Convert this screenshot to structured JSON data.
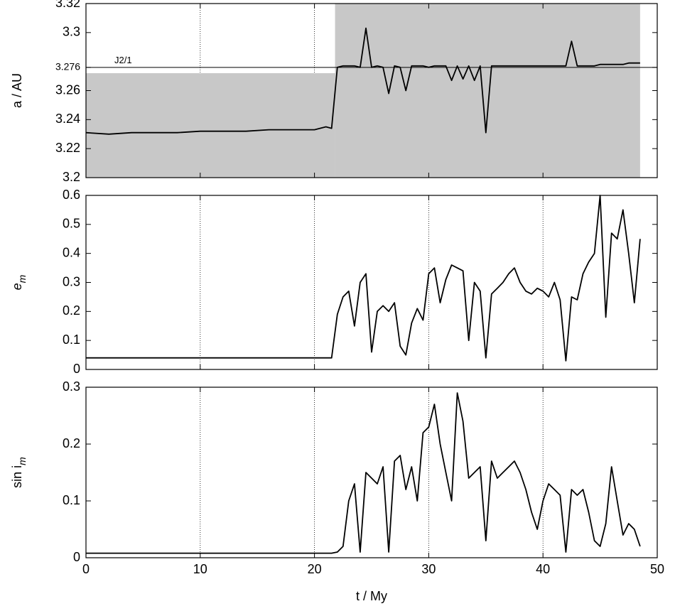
{
  "chart_data": [
    {
      "type": "line",
      "ylabel": "a / AU",
      "x": [
        0,
        2,
        4,
        6,
        8,
        10,
        12,
        14,
        16,
        18,
        20,
        21,
        21.5,
        22,
        22.5,
        23,
        23.5,
        24,
        24.5,
        25,
        25.5,
        26,
        26.5,
        27,
        27.5,
        28,
        28.5,
        29,
        29.5,
        30,
        30.5,
        31,
        31.5,
        32,
        32.5,
        33,
        33.5,
        34,
        34.5,
        35,
        35.5,
        36,
        36.5,
        37,
        37.5,
        38,
        38.5,
        39,
        39.5,
        40,
        40.5,
        41,
        41.5,
        42,
        42.5,
        43,
        43.5,
        44,
        44.5,
        45,
        45.5,
        46,
        46.5,
        47,
        47.5,
        48,
        48.5
      ],
      "values": [
        3.231,
        3.23,
        3.231,
        3.231,
        3.231,
        3.232,
        3.232,
        3.232,
        3.233,
        3.233,
        3.233,
        3.235,
        3.234,
        3.276,
        3.277,
        3.277,
        3.277,
        3.276,
        3.303,
        3.276,
        3.277,
        3.276,
        3.258,
        3.277,
        3.276,
        3.26,
        3.277,
        3.277,
        3.277,
        3.276,
        3.277,
        3.277,
        3.277,
        3.267,
        3.277,
        3.268,
        3.277,
        3.267,
        3.277,
        3.231,
        3.277,
        3.277,
        3.277,
        3.277,
        3.277,
        3.277,
        3.277,
        3.277,
        3.277,
        3.277,
        3.277,
        3.277,
        3.277,
        3.277,
        3.294,
        3.277,
        3.277,
        3.277,
        3.277,
        3.278,
        3.278,
        3.278,
        3.278,
        3.278,
        3.279,
        3.279,
        3.279
      ],
      "color": "#000000",
      "band": [
        {
          "x": [
            0,
            21.8
          ],
          "low": 3.2,
          "high": 3.272
        },
        {
          "x": [
            21.8,
            48.5
          ],
          "low": 3.2,
          "high": 3.32
        }
      ],
      "band_color": "#c8c8c8",
      "hline": 3.276,
      "hline_label": "J2/1",
      "xlim": [
        0,
        50
      ],
      "xticks": [
        0,
        10,
        20,
        30,
        40,
        50
      ],
      "xtick_labels": false,
      "xgrid": true,
      "ylim": [
        3.2,
        3.32
      ],
      "yticks": [
        3.2,
        3.22,
        3.24,
        3.26,
        3.276,
        3.3,
        3.32
      ]
    },
    {
      "type": "line",
      "ylabel": "e",
      "ylabel_sub": "m",
      "x": [
        0,
        2,
        4,
        6,
        8,
        10,
        12,
        14,
        16,
        18,
        20,
        21,
        21.5,
        22,
        22.5,
        23,
        23.5,
        24,
        24.5,
        25,
        25.5,
        26,
        26.5,
        27,
        27.5,
        28,
        28.5,
        29,
        29.5,
        30,
        30.5,
        31,
        31.5,
        32,
        32.5,
        33,
        33.5,
        34,
        34.5,
        35,
        35.5,
        36,
        36.5,
        37,
        37.5,
        38,
        38.5,
        39,
        39.5,
        40,
        40.5,
        41,
        41.5,
        42,
        42.5,
        43,
        43.5,
        44,
        44.5,
        45,
        45.5,
        46,
        46.5,
        47,
        47.5,
        48,
        48.5
      ],
      "values": [
        0.04,
        0.04,
        0.04,
        0.04,
        0.04,
        0.04,
        0.04,
        0.04,
        0.04,
        0.04,
        0.04,
        0.04,
        0.04,
        0.19,
        0.25,
        0.27,
        0.15,
        0.3,
        0.33,
        0.06,
        0.2,
        0.22,
        0.2,
        0.23,
        0.08,
        0.05,
        0.16,
        0.21,
        0.17,
        0.33,
        0.35,
        0.23,
        0.31,
        0.36,
        0.35,
        0.34,
        0.1,
        0.3,
        0.27,
        0.04,
        0.26,
        0.28,
        0.3,
        0.33,
        0.35,
        0.3,
        0.27,
        0.26,
        0.28,
        0.27,
        0.25,
        0.3,
        0.24,
        0.03,
        0.25,
        0.24,
        0.33,
        0.37,
        0.4,
        0.6,
        0.18,
        0.47,
        0.45,
        0.55,
        0.4,
        0.23,
        0.45
      ],
      "color": "#000000",
      "xlim": [
        0,
        50
      ],
      "xticks": [
        0,
        10,
        20,
        30,
        40,
        50
      ],
      "xtick_labels": false,
      "xgrid": true,
      "ylim": [
        0,
        0.6
      ],
      "yticks": [
        0,
        0.1,
        0.2,
        0.3,
        0.4,
        0.5,
        0.6
      ]
    },
    {
      "type": "line",
      "ylabel": "sin i",
      "ylabel_sub": "m",
      "xlabel": "t / My",
      "x": [
        0,
        2,
        4,
        6,
        8,
        10,
        12,
        14,
        16,
        18,
        20,
        21,
        21.5,
        22,
        22.5,
        23,
        23.5,
        24,
        24.5,
        25,
        25.5,
        26,
        26.5,
        27,
        27.5,
        28,
        28.5,
        29,
        29.5,
        30,
        30.5,
        31,
        31.5,
        32,
        32.5,
        33,
        33.5,
        34,
        34.5,
        35,
        35.5,
        36,
        36.5,
        37,
        37.5,
        38,
        38.5,
        39,
        39.5,
        40,
        40.5,
        41,
        41.5,
        42,
        42.5,
        43,
        43.5,
        44,
        44.5,
        45,
        45.5,
        46,
        46.5,
        47,
        47.5,
        48,
        48.5
      ],
      "values": [
        0.008,
        0.008,
        0.008,
        0.008,
        0.008,
        0.008,
        0.008,
        0.008,
        0.008,
        0.008,
        0.008,
        0.008,
        0.008,
        0.01,
        0.02,
        0.1,
        0.13,
        0.01,
        0.15,
        0.14,
        0.13,
        0.16,
        0.01,
        0.17,
        0.18,
        0.12,
        0.16,
        0.1,
        0.22,
        0.23,
        0.27,
        0.2,
        0.15,
        0.1,
        0.29,
        0.24,
        0.14,
        0.15,
        0.16,
        0.03,
        0.17,
        0.14,
        0.15,
        0.16,
        0.17,
        0.15,
        0.12,
        0.08,
        0.05,
        0.1,
        0.13,
        0.12,
        0.11,
        0.01,
        0.12,
        0.11,
        0.12,
        0.08,
        0.03,
        0.02,
        0.06,
        0.16,
        0.1,
        0.04,
        0.06,
        0.05,
        0.02
      ],
      "color": "#000000",
      "xlim": [
        0,
        50
      ],
      "xticks": [
        0,
        10,
        20,
        30,
        40,
        50
      ],
      "xtick_labels": true,
      "xgrid": true,
      "ylim": [
        0,
        0.3
      ],
      "yticks": [
        0,
        0.1,
        0.2,
        0.3
      ]
    }
  ]
}
